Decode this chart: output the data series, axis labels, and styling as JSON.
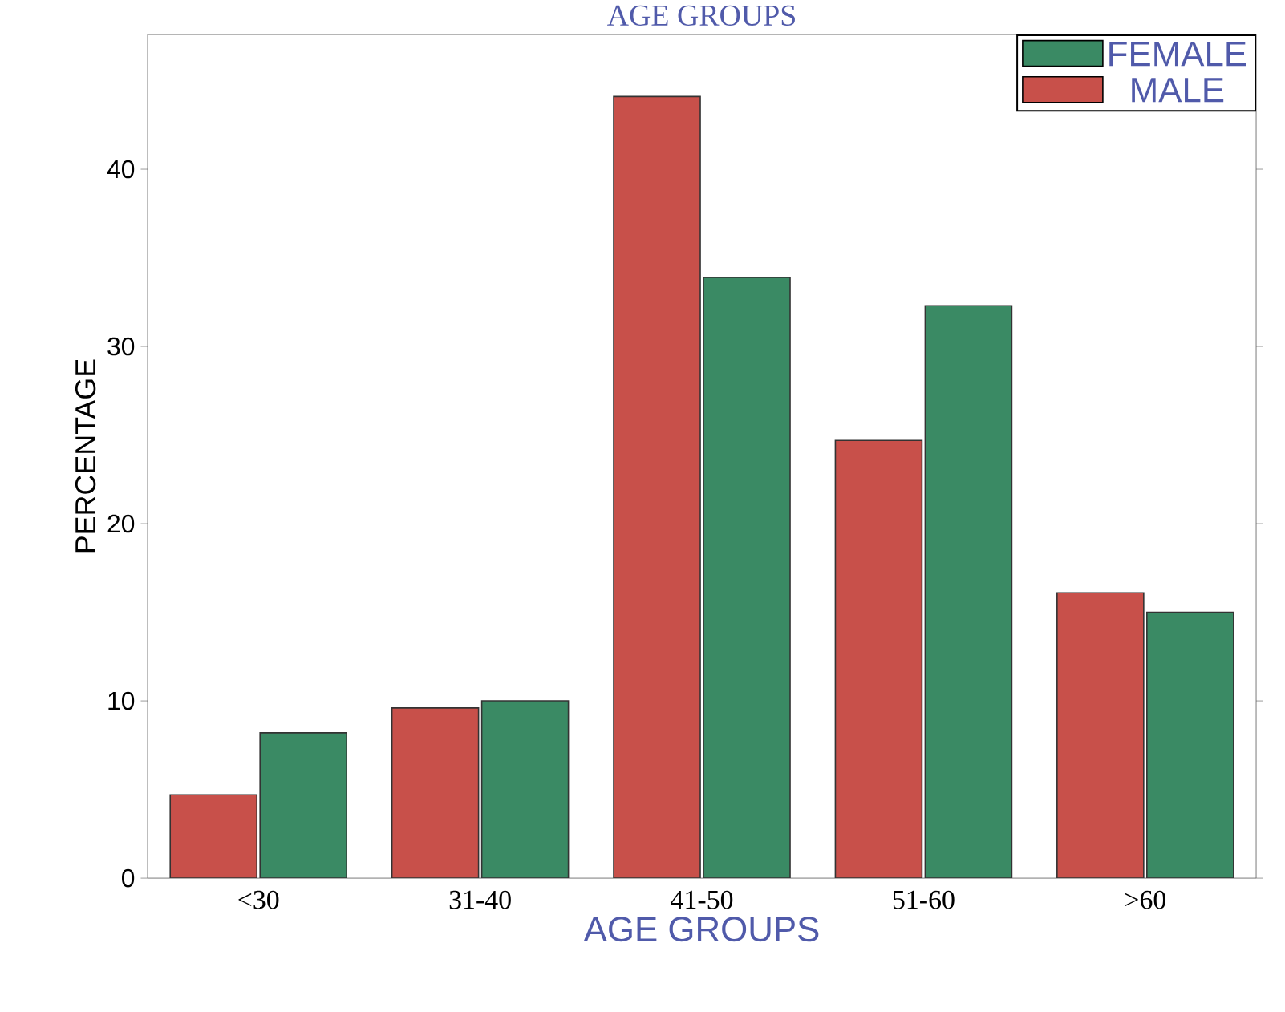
{
  "chart_data": {
    "type": "bar",
    "title": "AGE GROUPS",
    "xlabel": "AGE GROUPS",
    "ylabel": "PERCENTAGE",
    "categories": [
      "<30",
      "31-40",
      "41-50",
      "51-60",
      ">60"
    ],
    "series": [
      {
        "name": "MALE",
        "color": "#c8504a",
        "values": [
          4.7,
          9.6,
          44.1,
          24.7,
          16.1
        ]
      },
      {
        "name": "FEMALE",
        "color": "#3a8a64",
        "values": [
          8.2,
          10.0,
          33.9,
          32.3,
          15.0
        ]
      }
    ],
    "ylim": [
      0,
      47.6
    ],
    "yticks": [
      0,
      10,
      20,
      30,
      40
    ],
    "legend": "top right",
    "grid": false
  }
}
